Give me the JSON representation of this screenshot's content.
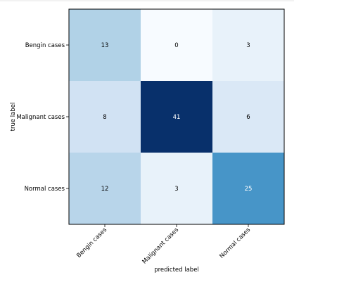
{
  "chart_data": {
    "type": "heatmap",
    "title": "",
    "xlabel": "predicted label",
    "ylabel": "true label",
    "x_categories": [
      "Bengin cases",
      "Malignant cases",
      "Normal cases"
    ],
    "y_categories": [
      "Bengin cases",
      "Malignant cases",
      "Normal cases"
    ],
    "values": [
      [
        13,
        0,
        3
      ],
      [
        8,
        41,
        6
      ],
      [
        12,
        3,
        25
      ]
    ],
    "colormap": "Blues",
    "colorscale_range": [
      0,
      41
    ],
    "colors": {
      "low": "#f7fbff",
      "high": "#08306b",
      "text_dark": "#000000",
      "text_light": "#ffffff",
      "frame": "#000000"
    },
    "grid": false,
    "legend": "none"
  }
}
